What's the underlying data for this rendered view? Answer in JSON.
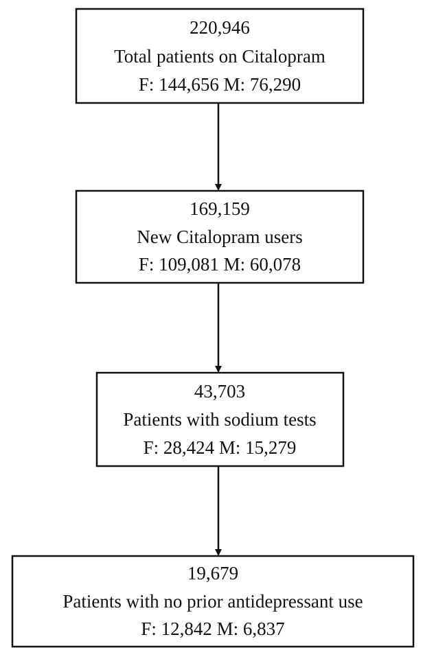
{
  "nodes": [
    {
      "count": "220,946",
      "label": "Total patients on Citalopram",
      "sex": "F: 144,656 M: 76,290"
    },
    {
      "count": "169,159",
      "label": "New Citalopram users",
      "sex": "F: 109,081 M: 60,078"
    },
    {
      "count": "43,703",
      "label": "Patients with sodium tests",
      "sex": "F: 28,424 M: 15,279"
    },
    {
      "count": "19,679",
      "label": "Patients with no prior antidepressant use",
      "sex": "F: 12,842 M: 6,837"
    }
  ]
}
